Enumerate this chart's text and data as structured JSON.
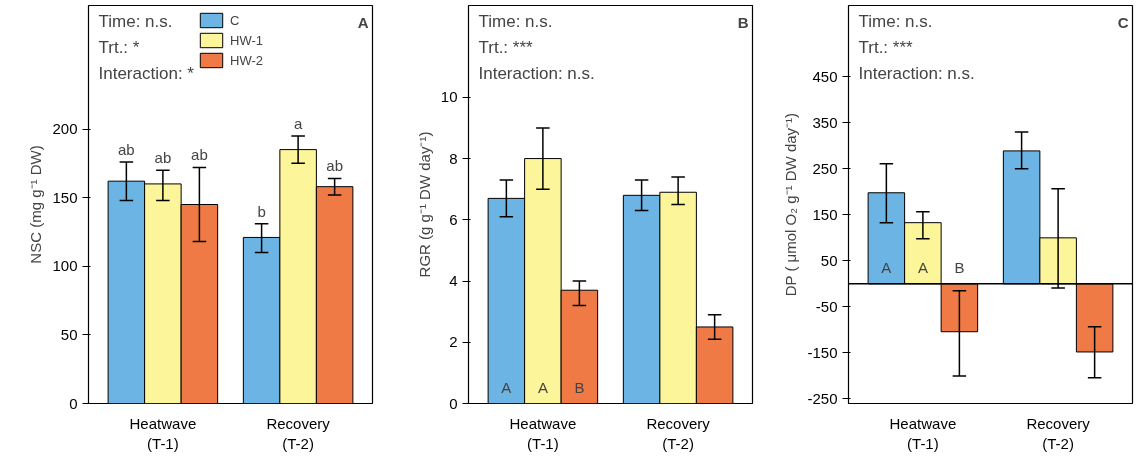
{
  "chart_data": [
    {
      "type": "bar",
      "title": "A",
      "categories": [
        "Heatwave\n(T-1)",
        "Recovery\n(T-2)"
      ],
      "ylabel": "NSC (mg g⁻¹ DW)",
      "ylim": [
        0,
        290
      ],
      "yticks": [
        0,
        50,
        100,
        150,
        200
      ],
      "legend": "top",
      "grid": false,
      "annotations": [
        "Time: n.s.",
        "Trt.: *",
        "Interaction: *"
      ],
      "series": [
        {
          "name": "C",
          "color": "#6cb4e4",
          "values": [
            162,
            121
          ],
          "errors": [
            [
              148,
              176
            ],
            [
              110,
              131
            ]
          ],
          "value_labels": [
            "ab",
            "b"
          ]
        },
        {
          "name": "HW-1",
          "color": "#fdf59a",
          "values": [
            160,
            185
          ],
          "errors": [
            [
              148,
              170
            ],
            [
              175,
              195
            ]
          ],
          "value_labels": [
            "ab",
            "a"
          ]
        },
        {
          "name": "HW-2",
          "color": "#ef7a45",
          "values": [
            145,
            158
          ],
          "errors": [
            [
              118,
              172
            ],
            [
              152,
              164
            ]
          ],
          "value_labels": [
            "ab",
            "ab"
          ]
        }
      ]
    },
    {
      "type": "bar",
      "title": "B",
      "categories": [
        "Heatwave\n(T-1)",
        "Recovery\n(T-2)"
      ],
      "ylabel": "RGR (g g⁻¹ DW day⁻¹)",
      "ylim": [
        0,
        13
      ],
      "yticks": [
        0,
        2,
        4,
        6,
        8,
        10
      ],
      "grid": false,
      "annotations": [
        "Time: n.s.",
        "Trt.: ***",
        "Interaction: n.s."
      ],
      "series": [
        {
          "color": "#6cb4e4",
          "values": [
            6.7,
            6.8
          ],
          "errors": [
            [
              6.1,
              7.3
            ],
            [
              6.3,
              7.3
            ]
          ],
          "value_labels": [
            "A",
            null
          ]
        },
        {
          "color": "#fdf59a",
          "values": [
            8.0,
            6.9
          ],
          "errors": [
            [
              7.0,
              9.0
            ],
            [
              6.5,
              7.4
            ]
          ],
          "value_labels": [
            "A",
            null
          ]
        },
        {
          "color": "#ef7a45",
          "values": [
            3.7,
            2.5
          ],
          "errors": [
            [
              3.2,
              4.0
            ],
            [
              2.1,
              2.9
            ]
          ],
          "value_labels": [
            "B",
            null
          ]
        }
      ]
    },
    {
      "type": "bar",
      "title": "C",
      "categories": [
        "Heatwave\n(T-1)",
        "Recovery\n(T-2)"
      ],
      "ylabel": "DP ( μmol O₂ g⁻¹ DW day⁻¹)",
      "ylim": [
        -260,
        605
      ],
      "yticks": [
        -250,
        -150,
        -50,
        50,
        150,
        250,
        350,
        450
      ],
      "grid": false,
      "annotations": [
        "Time: n.s.",
        "Trt.: ***",
        "Interaction: n.s."
      ],
      "ref_lines": [
        {
          "axis": "y",
          "value": 0,
          "color": "#000000"
        }
      ],
      "series": [
        {
          "color": "#6cb4e4",
          "values": [
            198,
            289
          ],
          "errors": [
            [
              133,
              261
            ],
            [
              250,
              330
            ]
          ],
          "value_labels": [
            "A",
            null
          ]
        },
        {
          "color": "#fdf59a",
          "values": [
            133,
            100
          ],
          "errors": [
            [
              98,
              157
            ],
            [
              -9,
              207
            ]
          ],
          "value_labels": [
            "A",
            null
          ]
        },
        {
          "color": "#ef7a45",
          "values": [
            -104,
            -148
          ],
          "errors": [
            [
              -200,
              -15
            ],
            [
              -204,
              -93
            ]
          ],
          "value_labels": [
            "B",
            null
          ]
        }
      ]
    }
  ]
}
